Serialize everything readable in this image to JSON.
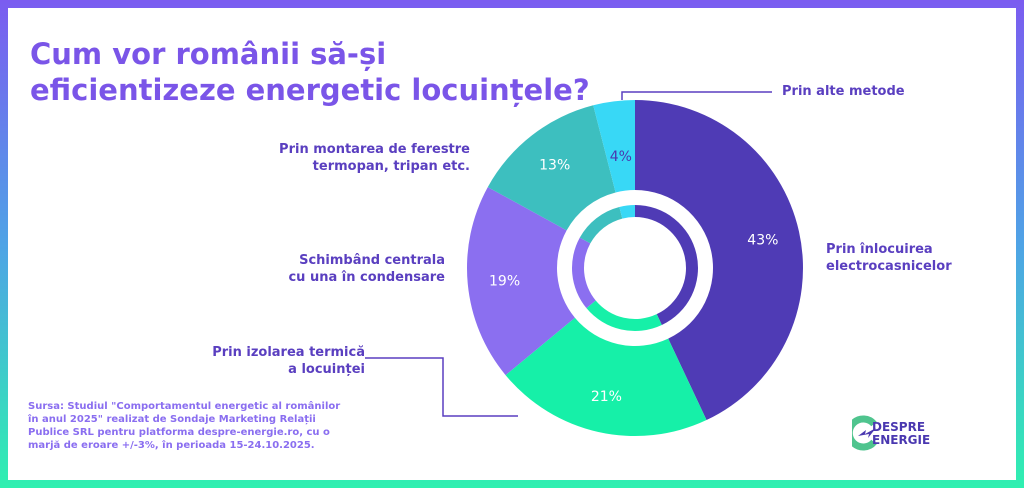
{
  "title": "Cum vor românii să-și eficientizeze energetic locuințele?",
  "source": "Sursa: Studiul \"Comportamentul energetic al românilor în anul 2025\" realizat de Sondaje Marketing Relații Publice SRL pentru platforma despre-energie.ro, cu o marjă de eroare +/-3%, în perioada 15-24.10.2025.",
  "logo": {
    "line1": "DESPRE",
    "line2": "ENERGIE"
  },
  "chart_data": {
    "type": "pie",
    "variant": "donut",
    "start": "top",
    "direction": "clockwise",
    "unit": "%",
    "slices": [
      {
        "label": "Prin înlocuirea electrocasnicelor",
        "value": 43,
        "display": "43%",
        "color": "#4f3bb5"
      },
      {
        "label": "Prin izolarea termică a locuinței",
        "value": 21,
        "display": "21%",
        "color": "#16f0a8"
      },
      {
        "label": "Schimbând centrala cu una în condensare",
        "value": 19,
        "display": "19%",
        "color": "#8b6ff0"
      },
      {
        "label": "Prin montarea de ferestre termopan, tripan etc.",
        "value": 13,
        "display": "13%",
        "color": "#3dbfbf"
      },
      {
        "label": "Prin alte metode",
        "value": 4,
        "display": "4%",
        "color": "#38d8f6"
      }
    ]
  }
}
